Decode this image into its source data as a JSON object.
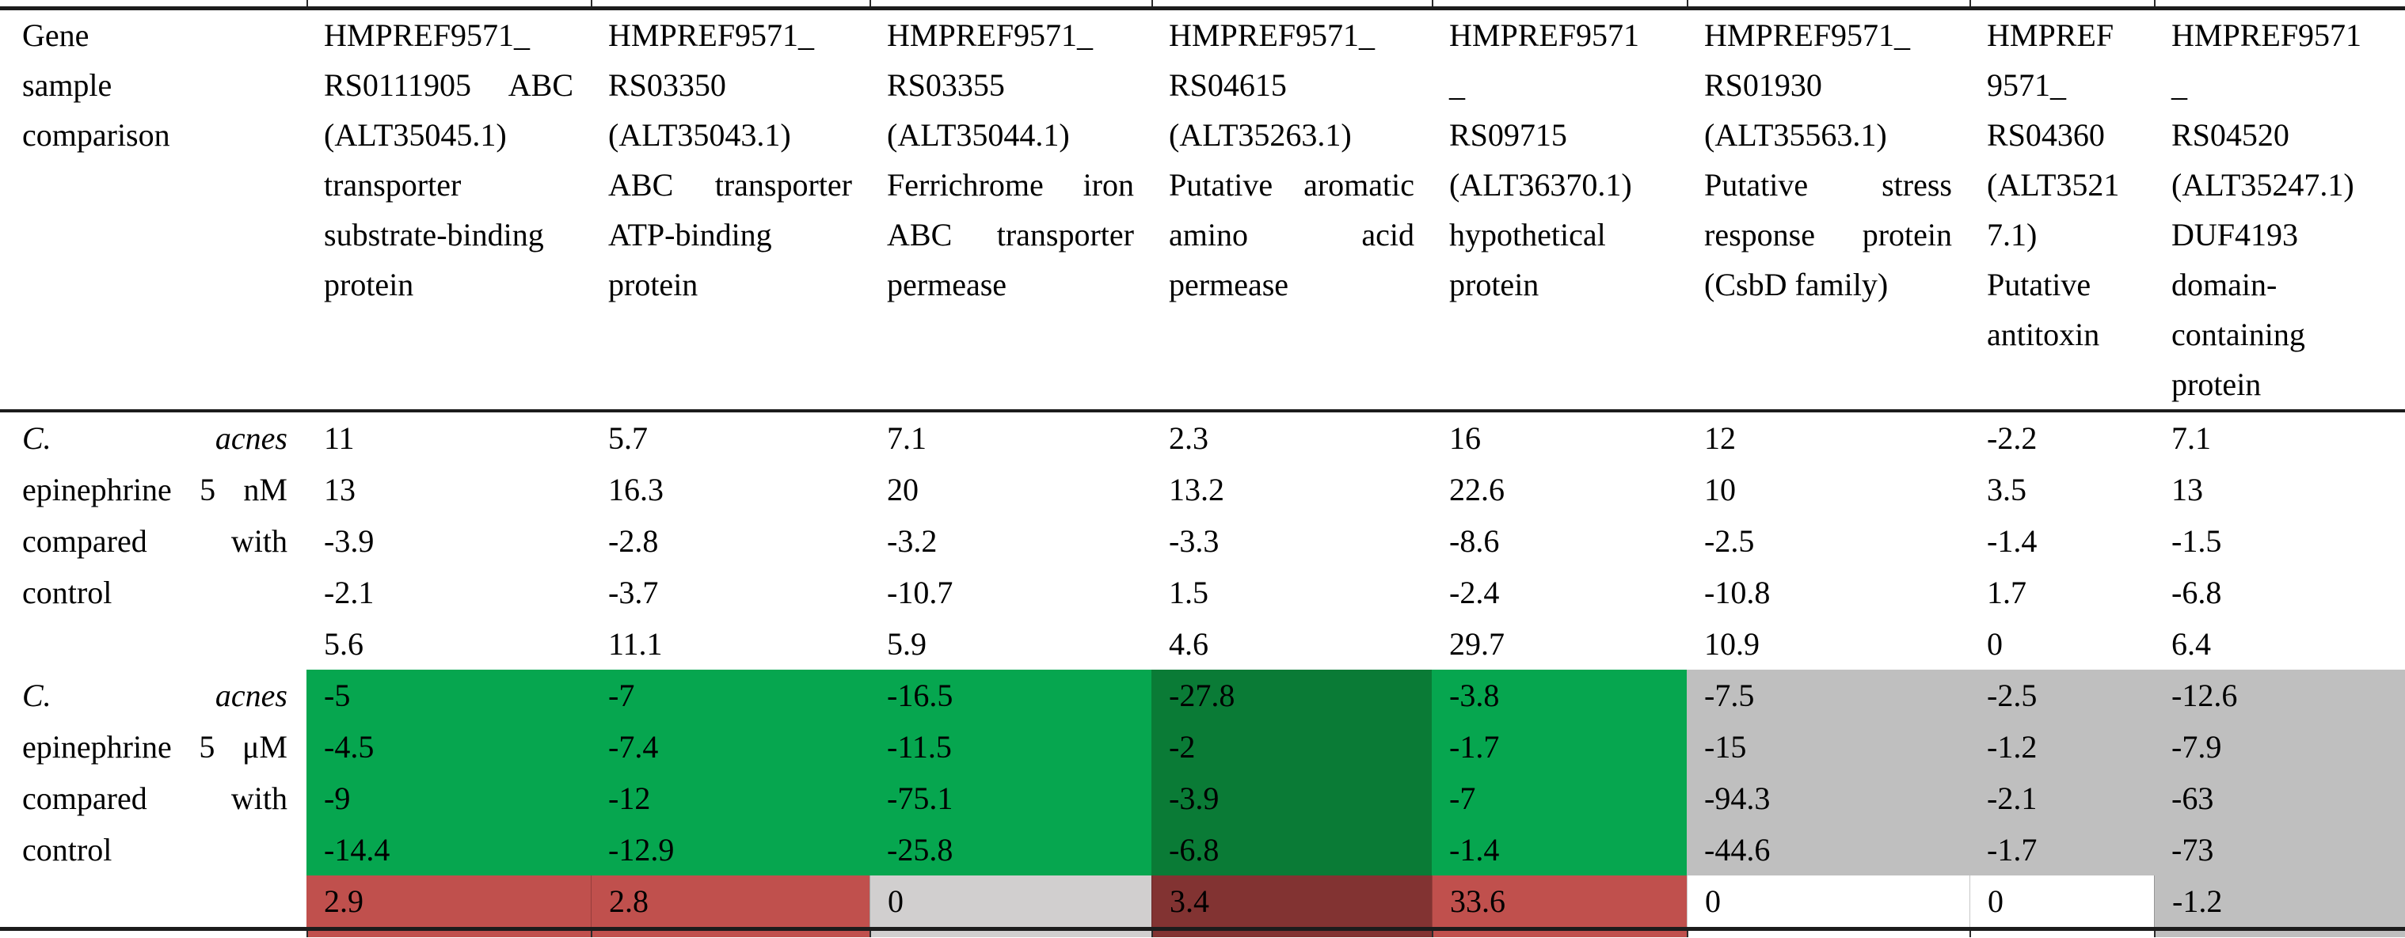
{
  "colors": {
    "green": "#06A64F",
    "dark_green": "#0A7B36",
    "red": "#C0504D",
    "dark_red": "#823332",
    "gray": "#BFBFBF",
    "light_gray": "#D1CFCF",
    "white": "#FFFFFF",
    "rule": "#1c1c1c"
  },
  "table": {
    "header": {
      "cells": [
        {
          "name": "gene-sample-comparison",
          "lines": [
            "Gene",
            "sample",
            "comparison"
          ]
        },
        {
          "name": "gene-1",
          "lines": [
            "HMPREF9571_",
            "RS0111905 ABC",
            "(ALT35045.1)",
            "transporter",
            "substrate-binding",
            "protein"
          ]
        },
        {
          "name": "gene-2",
          "lines": [
            "HMPREF9571_",
            "RS03350",
            "(ALT35043.1)",
            "ABC transporter",
            "ATP-binding",
            "protein"
          ]
        },
        {
          "name": "gene-3",
          "lines": [
            "HMPREF9571_",
            "RS03355",
            "(ALT35044.1)",
            "Ferrichrome iron",
            "ABC transporter",
            "permease"
          ]
        },
        {
          "name": "gene-4",
          "lines": [
            "HMPREF9571_",
            "RS04615",
            "(ALT35263.1)",
            "Putative aromatic",
            "amino acid",
            "permease"
          ]
        },
        {
          "name": "gene-5",
          "lines": [
            "HMPREF9571",
            "_",
            "RS09715",
            "(ALT36370.1)",
            "hypothetical",
            "protein"
          ]
        },
        {
          "name": "gene-6",
          "lines": [
            "HMPREF9571_",
            "RS01930",
            "(ALT35563.1)",
            "Putative stress",
            "response protein",
            "(CsbD family)"
          ]
        },
        {
          "name": "gene-7",
          "lines": [
            "HMPREF",
            "9571_",
            "RS04360",
            "(ALT3521",
            "7.1)",
            "Putative",
            "antitoxin"
          ]
        },
        {
          "name": "gene-8",
          "lines": [
            "HMPREF9571",
            "_",
            "RS04520",
            "(ALT35247.1)",
            "DUF4193",
            "domain-",
            "containing",
            "protein"
          ]
        }
      ]
    },
    "groups": [
      {
        "label_lines": [
          {
            "text": "C. acnes",
            "justify": true,
            "italic": true
          },
          {
            "text": "epinephrine 5 nM",
            "justify": true
          },
          {
            "text": "compared with",
            "justify": true
          },
          {
            "text": "control"
          },
          {
            "text": ""
          }
        ],
        "rows": [
          [
            "11",
            "5.7",
            "7.1",
            "2.3",
            "16",
            "12",
            "-2.2",
            "7.1"
          ],
          [
            "13",
            "16.3",
            "20",
            "13.2",
            "22.6",
            "10",
            "3.5",
            "13"
          ],
          [
            "-3.9",
            "-2.8",
            "-3.2",
            "-3.3",
            "-8.6",
            "-2.5",
            "-1.4",
            "-1.5"
          ],
          [
            "-2.1",
            "-3.7",
            "-10.7",
            "1.5",
            "-2.4",
            "-10.8",
            "1.7",
            "-6.8"
          ],
          [
            "5.6",
            "11.1",
            "5.9",
            "4.6",
            "29.7",
            "10.9",
            "0",
            "6.4"
          ]
        ],
        "bg": null
      },
      {
        "label_lines": [
          {
            "text": "C. acnes",
            "justify": true,
            "italic": true
          },
          {
            "text": "epinephrine 5 μM",
            "justify": true
          },
          {
            "text": "compared with",
            "justify": true
          },
          {
            "text": "control"
          },
          {
            "text": ""
          }
        ],
        "rows": [
          [
            "-5",
            "-7",
            "-16.5",
            "-27.8",
            "-3.8",
            "-7.5",
            "-2.5",
            "-12.6"
          ],
          [
            "-4.5",
            "-7.4",
            "-11.5",
            "-2",
            "-1.7",
            "-15",
            "-1.2",
            "-7.9"
          ],
          [
            "-9",
            "-12",
            "-75.1",
            "-3.9",
            "-7",
            "-94.3",
            "-2.1",
            "-63"
          ],
          [
            "-14.4",
            "-12.9",
            "-25.8",
            "-6.8",
            "-1.4",
            "-44.6",
            "-1.7",
            "-73"
          ],
          [
            "2.9",
            "2.8",
            "0",
            "3.4",
            "33.6",
            "0",
            "0",
            "-1.2"
          ]
        ],
        "bg": {
          "value_rows": [
            "green",
            "green",
            "green",
            "dark_green",
            "green",
            "gray",
            "gray",
            "gray"
          ],
          "last_row": [
            "red",
            "red",
            "light_gray",
            "dark_red",
            "red",
            "white",
            "white",
            "gray"
          ]
        }
      }
    ],
    "top_strip": [
      "white",
      "white",
      "white",
      "white",
      "white",
      "white",
      "white",
      "white",
      "white"
    ],
    "bottom_strip": [
      "white",
      "red",
      "red",
      "light_gray",
      "dark_red",
      "red",
      "white",
      "white",
      "gray"
    ]
  }
}
